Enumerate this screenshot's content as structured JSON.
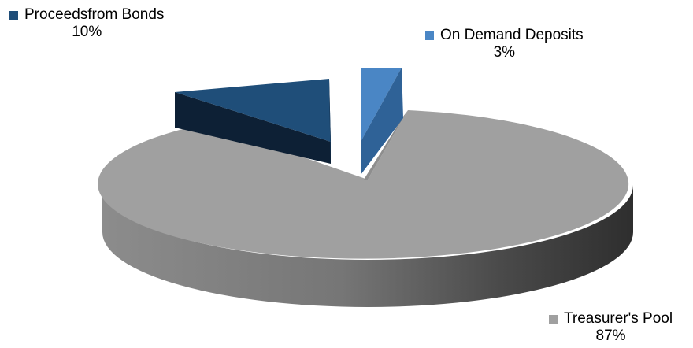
{
  "chart_data": {
    "type": "pie",
    "style": "3d-exploded",
    "slices": [
      {
        "label": "Proceedsfrom Bonds",
        "percent_label": "10%",
        "value": 10,
        "color": "#1f4e79"
      },
      {
        "label": "On Demand Deposits",
        "percent_label": "3%",
        "value": 3,
        "color": "#4a86c5"
      },
      {
        "label": "Treasurer's Pool",
        "percent_label": "87%",
        "value": 87,
        "color": "#a0a0a0"
      }
    ],
    "legend": "none"
  }
}
